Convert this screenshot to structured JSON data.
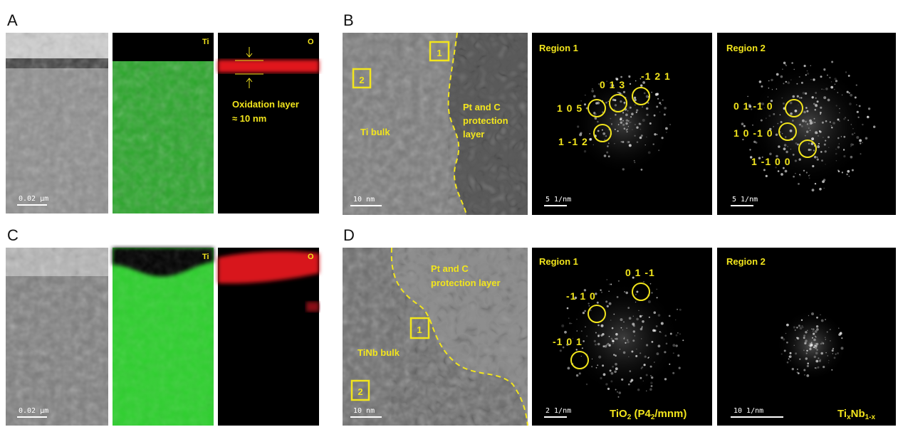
{
  "panel_a": {
    "label": "A",
    "scale_bar": "0.02 µm",
    "ti_map": "Ti",
    "o_map": "O",
    "oxidation_note": [
      "Oxidation layer",
      "≈ 10 nm"
    ]
  },
  "panel_b": {
    "label": "B",
    "tem": {
      "markers": [
        "1",
        "2"
      ],
      "region_label": "Ti bulk",
      "protection_label": [
        "Pt and C",
        "protection",
        "layer"
      ],
      "scale_bar": "10 nm"
    },
    "fft_1": {
      "title": "Region 1",
      "spots": [
        "0 1 3",
        "-1 2 1",
        "1 0 5",
        "1 -1 2"
      ],
      "scale_bar": "5 1/nm"
    },
    "fft_2": {
      "title": "Region 2",
      "spots": [
        "0 1 -1 0",
        "1 0 -1 0",
        "1 -1 0 0"
      ],
      "scale_bar": "5 1/nm"
    }
  },
  "panel_c": {
    "label": "C",
    "scale_bar": "0.02 µm",
    "ti_map": "Ti",
    "o_map": "O"
  },
  "panel_d": {
    "label": "D",
    "tem": {
      "markers": [
        "1",
        "2"
      ],
      "region_label": "TiNb bulk",
      "protection_label": [
        "Pt and C",
        "protection layer"
      ],
      "scale_bar": "10 nm"
    },
    "fft_1": {
      "title": "Region 1",
      "spots": [
        "0 1 -1",
        "-1 1 0",
        "-1 0 1"
      ],
      "scale_bar": "2 1/nm",
      "phase": [
        "TiO",
        "2",
        " (P4",
        "2",
        "/mnm)"
      ]
    },
    "fft_2": {
      "title": "Region 2",
      "scale_bar": "10 1/nm",
      "phase": [
        "Ti",
        "x",
        "Nb",
        "1-x"
      ]
    }
  }
}
